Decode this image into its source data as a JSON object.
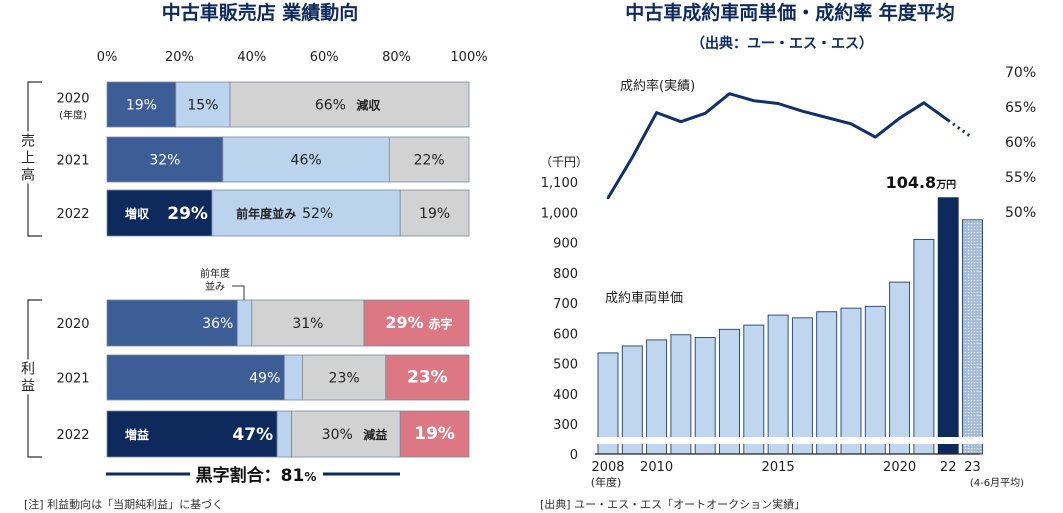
{
  "left_panel": {
    "title": "中古車販売店 業績動向",
    "footnote": "[注] 利益動向は「当期純利益」に基づく",
    "group_labels": [
      "売上高",
      "利益"
    ],
    "black_ratio_label": "黒字割合：81",
    "black_ratio_unit": "%",
    "callout_label_line1": "前年度",
    "callout_label_line2": "並み"
  },
  "right_panel": {
    "title": "中古車成約車両単価・成約率 年度平均",
    "subtitle": "（出典：ユー・エス・エス）",
    "footnote": "[出典] ユー・エス・エス「オートオークション実績」",
    "line_label": "成約率(実績)",
    "bar_label": "成約車両単価",
    "y_unit": "（千円）",
    "highlight_value": "104.8",
    "highlight_unit": "万円",
    "x_note_left": "(年度)",
    "x_note_right": "(4-6月平均)"
  },
  "colors": {
    "dark_navy": "#0e2a5c",
    "mid_blue": "#3c5d96",
    "light_blue": "#bcd3ed",
    "grey": "#d2d2d2",
    "red": "#db7884",
    "bar_light": "#c0d6ee",
    "bar_edge": "#1f3f73",
    "line": "#10306a"
  },
  "chart_data": [
    {
      "type": "bar",
      "title": "中古車販売店 業績動向",
      "stacked": true,
      "orientation": "horizontal",
      "xlim": [
        0,
        100
      ],
      "x_ticks": [
        "0%",
        "20%",
        "40%",
        "60%",
        "80%",
        "100%"
      ],
      "groups": [
        {
          "name": "売上高",
          "rows": [
            {
              "year": "2020",
              "year_note": "(年度)",
              "segments": [
                {
                  "value": 19,
                  "label": "19%",
                  "color": "#3c5d96"
                },
                {
                  "value": 15,
                  "label": "15%",
                  "color": "#bcd3ed"
                },
                {
                  "value": 66,
                  "label": "66%",
                  "tag": "減収",
                  "color": "#d2d2d2"
                }
              ]
            },
            {
              "year": "2021",
              "segments": [
                {
                  "value": 32,
                  "label": "32%",
                  "color": "#3c5d96"
                },
                {
                  "value": 46,
                  "label": "46%",
                  "color": "#bcd3ed"
                },
                {
                  "value": 22,
                  "label": "22%",
                  "color": "#d2d2d2"
                }
              ]
            },
            {
              "year": "2022",
              "segments": [
                {
                  "value": 29,
                  "label": "29%",
                  "tag": "増収",
                  "color": "#0e2a5c"
                },
                {
                  "value": 52,
                  "label": "52%",
                  "tag": "前年度並み",
                  "color": "#bcd3ed"
                },
                {
                  "value": 19,
                  "label": "19%",
                  "color": "#d2d2d2"
                }
              ]
            }
          ]
        },
        {
          "name": "利益",
          "rows": [
            {
              "year": "2020",
              "segments": [
                {
                  "value": 36,
                  "label": "36%",
                  "color": "#3c5d96"
                },
                {
                  "value": 4,
                  "label": "",
                  "color": "#bcd3ed"
                },
                {
                  "value": 31,
                  "label": "31%",
                  "color": "#d2d2d2"
                },
                {
                  "value": 29,
                  "label": "29%",
                  "tag": "赤字",
                  "color": "#db7884"
                }
              ]
            },
            {
              "year": "2021",
              "segments": [
                {
                  "value": 49,
                  "label": "49%",
                  "color": "#3c5d96"
                },
                {
                  "value": 5,
                  "label": "",
                  "color": "#bcd3ed"
                },
                {
                  "value": 23,
                  "label": "23%",
                  "color": "#d2d2d2"
                },
                {
                  "value": 23,
                  "label": "23%",
                  "color": "#db7884"
                }
              ]
            },
            {
              "year": "2022",
              "segments": [
                {
                  "value": 47,
                  "label": "47%",
                  "tag": "増益",
                  "color": "#0e2a5c"
                },
                {
                  "value": 4,
                  "label": "",
                  "color": "#bcd3ed"
                },
                {
                  "value": 30,
                  "label": "30%",
                  "tag": "減益",
                  "color": "#d2d2d2"
                },
                {
                  "value": 19,
                  "label": "19%",
                  "color": "#db7884"
                }
              ]
            }
          ]
        }
      ]
    },
    {
      "type": "bar",
      "title": "中古車成約車両単価・成約率 年度平均",
      "ylabel": "（千円）",
      "ylim": [
        0,
        1100
      ],
      "y_ticks": [
        0,
        300,
        400,
        500,
        600,
        700,
        800,
        900,
        1000,
        1100
      ],
      "y_tick_labels": [
        "0",
        "300",
        "400",
        "500",
        "600",
        "700",
        "800",
        "900",
        "1,000",
        "1,100"
      ],
      "axis_break": true,
      "x_tick_labels": [
        "2008",
        "2010",
        "2015",
        "2020",
        "22",
        "23"
      ],
      "x_tick_years": [
        2008,
        2010,
        2015,
        2020,
        2022,
        2023
      ],
      "series": [
        {
          "name": "成約車両単価",
          "x": [
            2008,
            2009,
            2010,
            2011,
            2012,
            2013,
            2014,
            2015,
            2016,
            2017,
            2018,
            2019,
            2020,
            2021,
            2022,
            2023
          ],
          "values": [
            535,
            558,
            578,
            595,
            586,
            613,
            627,
            660,
            651,
            671,
            683,
            689,
            769,
            910,
            1048,
            975
          ],
          "styles": [
            "normal",
            "normal",
            "normal",
            "normal",
            "normal",
            "normal",
            "normal",
            "normal",
            "normal",
            "normal",
            "normal",
            "normal",
            "normal",
            "normal",
            "highlight",
            "hatched"
          ]
        }
      ],
      "highlight_label": "104.8万円"
    },
    {
      "type": "line",
      "series": [
        {
          "name": "成約率(実績)",
          "x": [
            2008,
            2009,
            2010,
            2011,
            2012,
            2013,
            2014,
            2015,
            2016,
            2017,
            2018,
            2019,
            2020,
            2021,
            2022
          ],
          "values": [
            52.0,
            57.8,
            64.2,
            62.9,
            64.1,
            66.9,
            65.9,
            65.5,
            64.4,
            63.5,
            62.6,
            60.7,
            63.4,
            65.6,
            63.1
          ],
          "dotted_to": {
            "x": 2023,
            "value": 60.6
          }
        }
      ],
      "y2lim": [
        50,
        70
      ],
      "y2_ticks": [
        "50%",
        "55%",
        "60%",
        "65%",
        "70%"
      ]
    }
  ]
}
